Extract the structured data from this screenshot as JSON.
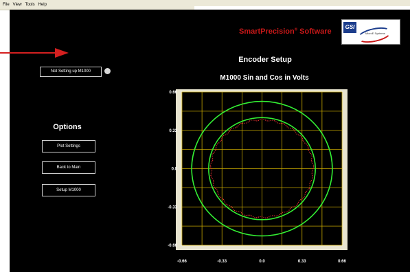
{
  "menu": [
    "File",
    "View",
    "Tools",
    "Help"
  ],
  "brand": {
    "name": "SmartPrecision",
    "mark": "®",
    "suffix": " Software",
    "color": "#c81818"
  },
  "logo": {
    "company": "GSI",
    "subtitle": "MicroE Systems"
  },
  "status": {
    "label": "Not Setting up M1000",
    "indicator_color": "#d8d8d8"
  },
  "options": {
    "title": "Options",
    "buttons": [
      "Plot Settings",
      "Back to Main",
      "Setup M1000"
    ]
  },
  "page_title": "Encoder Setup",
  "colors": {
    "annotation_arrow": "#d42020",
    "grid": "#c8a800",
    "circle": "#33ee33",
    "data": "#e03030",
    "plot_frame": "#e8e4d0"
  },
  "chart_data": {
    "type": "scatter",
    "title": "M1000 Sin and Cos in Volts",
    "xlabel": "",
    "ylabel": "",
    "xlim": [
      -0.66,
      0.66
    ],
    "ylim": [
      -0.66,
      0.66
    ],
    "x_ticks": [
      "-0.66",
      "-0.33",
      "0.0",
      "0.33",
      "0.66"
    ],
    "y_ticks": [
      "0.66",
      "0.33",
      "0.0",
      "-0.33",
      "-0.66"
    ],
    "grid": true,
    "grid_divisions": 8,
    "reference_circles": [
      {
        "radius": 0.58
      },
      {
        "radius": 0.44
      }
    ],
    "signal": {
      "center": [
        0.0,
        0.0
      ],
      "radius": 0.42,
      "points": 180
    }
  }
}
